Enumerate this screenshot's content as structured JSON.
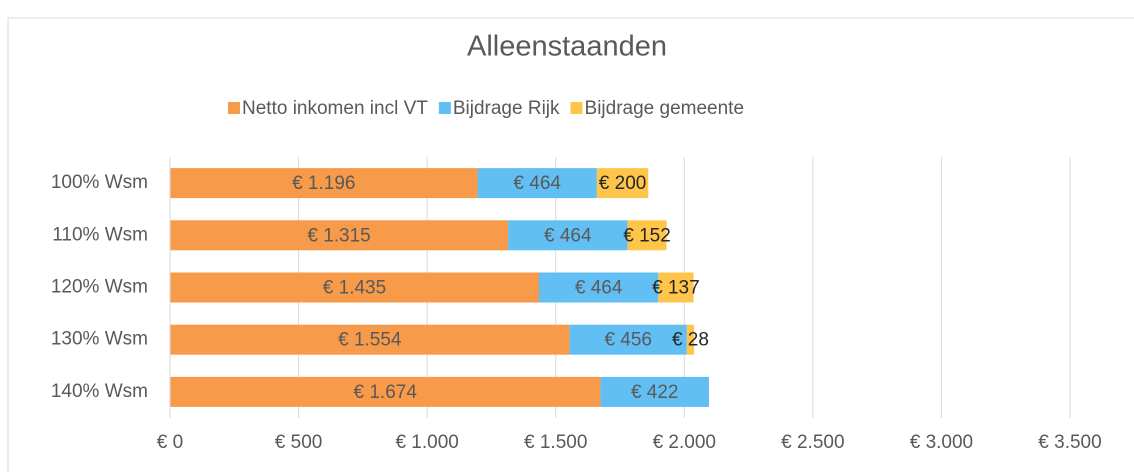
{
  "chart_data": {
    "type": "bar",
    "orientation": "horizontal",
    "stacked": true,
    "title": "Alleenstaanden",
    "categories": [
      "100% Wsm",
      "110% Wsm",
      "120% Wsm",
      "130% Wsm",
      "140% Wsm"
    ],
    "series": [
      {
        "name": "Netto inkomen incl VT",
        "color": "#f79a4a",
        "values": [
          1196,
          1315,
          1435,
          1554,
          1674
        ],
        "value_labels": [
          "€ 1.196",
          "€ 1.315",
          "€ 1.435",
          "€ 1.554",
          "€ 1.674"
        ]
      },
      {
        "name": "Bijdrage Rijk",
        "color": "#62bff4",
        "values": [
          464,
          464,
          464,
          456,
          422
        ],
        "value_labels": [
          "€ 464",
          "€ 464",
          "€ 464",
          "€ 456",
          "€ 422"
        ]
      },
      {
        "name": "Bijdrage gemeente",
        "color": "#ffc54a",
        "values": [
          200,
          152,
          137,
          28,
          null
        ],
        "value_labels": [
          "€ 200",
          "€ 152",
          "€ 137",
          "€ 28",
          null
        ]
      }
    ],
    "xlim": [
      0,
      3500
    ],
    "xticks": [
      {
        "value": 0,
        "label": "€ 0"
      },
      {
        "value": 500,
        "label": "€ 500"
      },
      {
        "value": 1000,
        "label": "€ 1.000"
      },
      {
        "value": 1500,
        "label": "€ 1.500"
      },
      {
        "value": 2000,
        "label": "€ 2.000"
      },
      {
        "value": 2500,
        "label": "€ 2.500"
      },
      {
        "value": 3000,
        "label": "€ 3.000"
      },
      {
        "value": 3500,
        "label": "€ 3.500"
      }
    ],
    "grid": true,
    "legend": "top"
  }
}
